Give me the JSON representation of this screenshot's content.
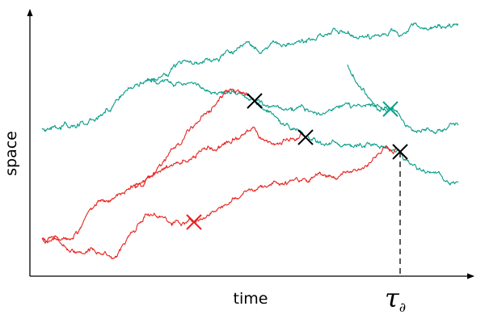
{
  "labels": {
    "y_axis": "space",
    "x_axis": "time",
    "marker": {
      "symbol": "τ",
      "subscript": "∂"
    }
  }
}
